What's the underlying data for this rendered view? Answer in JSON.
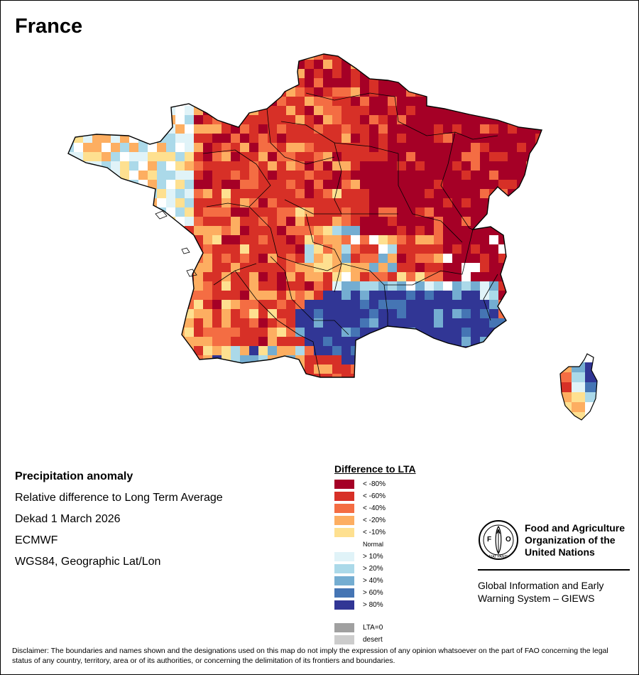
{
  "header": {
    "title": "France"
  },
  "info": {
    "heading": "Precipitation anomaly",
    "line1": "Relative difference to Long Term Average",
    "line2": "Dekad 1 March 2026",
    "line3": "ECMWF",
    "line4": "WGS84, Geographic Lat/Lon"
  },
  "legend": {
    "title": "Difference to LTA",
    "items": [
      {
        "label": "< -80%",
        "color": "#a50026"
      },
      {
        "label": "< -60%",
        "color": "#d73027"
      },
      {
        "label": "< -40%",
        "color": "#f46d43"
      },
      {
        "label": "< -20%",
        "color": "#fdae61"
      },
      {
        "label": "< -10%",
        "color": "#fee090"
      },
      {
        "label": "Normal",
        "color": "#ffffff"
      },
      {
        "label": "> 10%",
        "color": "#e0f3f8"
      },
      {
        "label": "> 20%",
        "color": "#abd9e9"
      },
      {
        "label": "> 40%",
        "color": "#74add1"
      },
      {
        "label": "> 60%",
        "color": "#4575b4"
      },
      {
        "label": "> 80%",
        "color": "#313695"
      },
      {
        "label": "LTA=0",
        "color": "#a0a0a0"
      },
      {
        "label": "desert",
        "color": "#cccccc"
      }
    ]
  },
  "logo": {
    "letters": "FAO",
    "motto": "FIAT PANIS",
    "org_line1": "Food and Agriculture",
    "org_line2": "Organization of the",
    "org_line3": "United Nations",
    "system_line1": "Global Information and Early",
    "system_line2": "Warning System – GIEWS"
  },
  "disclaimer": "Disclaimer: The boundaries and names shown and the designations used on this map do not imply the expression of any opinion whatsoever on the part of FAO concerning the legal status of any country, territory, area or of its authorities, or concerning the delimitation of its frontiers and boundaries."
}
